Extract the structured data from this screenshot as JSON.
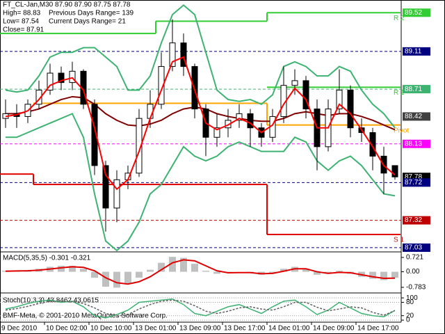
{
  "chart_data": [
    {
      "type": "candlestick",
      "title": "FT_CL-Jan,M30  87.90 87.90 87.75 87.78",
      "info": [
        "High= 88.83",
        "Low= 87.54",
        "Close= 87.91"
      ],
      "info_right": [
        "Previous Days Range= 139",
        "Current Days Range= 21"
      ],
      "categories": [
        "9 Dec 2010",
        null,
        null,
        null,
        "10 Dec 02:00",
        null,
        null,
        null,
        "10 Dec 10:00",
        null,
        null,
        null,
        "13 Dec 01:00",
        null,
        null,
        null,
        "13 Dec 09:00",
        null,
        null,
        null,
        "13 Dec 17:00",
        null,
        null,
        null,
        "14 Dec 01:00",
        null,
        null,
        null,
        "14 Dec 09:00",
        null,
        null,
        null,
        "14 Dec 17:00",
        null,
        null,
        null
      ],
      "open": [
        88.4,
        88.45,
        88.42,
        88.55,
        88.7,
        88.88,
        88.78,
        88.9,
        88.55,
        87.9,
        87.45,
        87.75,
        87.82,
        88.4,
        88.55,
        88.95,
        89.2,
        88.95,
        88.5,
        88.2,
        88.3,
        88.38,
        88.45,
        88.3,
        88.2,
        88.42,
        88.75,
        88.8,
        88.5,
        88.1,
        88.5,
        88.7,
        88.3,
        88.25,
        88.0,
        87.9
      ],
      "high": [
        88.6,
        88.55,
        88.6,
        88.8,
        88.98,
        88.95,
        89.0,
        88.92,
        88.6,
        87.95,
        87.85,
        87.9,
        88.5,
        88.7,
        89.1,
        89.45,
        89.3,
        88.98,
        88.55,
        88.45,
        88.5,
        88.55,
        88.5,
        88.35,
        88.5,
        88.95,
        88.92,
        88.85,
        88.6,
        88.6,
        88.92,
        88.75,
        88.4,
        88.3,
        88.1,
        87.9
      ],
      "low": [
        88.3,
        88.3,
        88.35,
        88.5,
        88.65,
        88.7,
        88.7,
        88.5,
        87.8,
        87.2,
        87.3,
        87.65,
        87.78,
        88.3,
        88.5,
        88.9,
        88.85,
        88.4,
        88.0,
        88.1,
        88.2,
        88.3,
        88.1,
        88.1,
        88.15,
        88.35,
        88.65,
        88.4,
        87.85,
        88.05,
        88.45,
        88.2,
        88.15,
        87.85,
        87.6,
        87.75
      ],
      "close": [
        88.45,
        88.42,
        88.55,
        88.7,
        88.88,
        88.78,
        88.9,
        88.55,
        87.9,
        87.45,
        87.75,
        87.82,
        88.4,
        88.55,
        88.95,
        89.2,
        88.95,
        88.5,
        88.2,
        88.3,
        88.38,
        88.45,
        88.3,
        88.2,
        88.42,
        88.75,
        88.8,
        88.5,
        88.1,
        88.5,
        88.7,
        88.3,
        88.25,
        88.0,
        87.82,
        87.78
      ],
      "series": [
        {
          "color": "#3cb371",
          "values": [
            88.7,
            88.68,
            88.7,
            88.85,
            89.05,
            89.1,
            89.1,
            89.15,
            89.15,
            89.05,
            88.95,
            88.7,
            88.7,
            88.85,
            89.2,
            89.5,
            89.6,
            89.5,
            89.1,
            88.7,
            88.6,
            88.58,
            88.6,
            88.55,
            88.65,
            88.95,
            89.0,
            88.95,
            88.85,
            88.85,
            88.95,
            88.9,
            88.7,
            88.55,
            88.45,
            88.3
          ]
        },
        {
          "color": "#3cb371",
          "values": [
            88.2,
            88.2,
            88.25,
            88.3,
            88.35,
            88.4,
            88.45,
            88.2,
            87.6,
            87.1,
            87.0,
            87.1,
            87.3,
            87.6,
            87.7,
            87.9,
            88.1,
            88.0,
            87.95,
            88.0,
            88.1,
            88.15,
            88.1,
            88.05,
            88.05,
            88.05,
            88.2,
            88.15,
            87.95,
            87.85,
            87.95,
            88.0,
            87.9,
            87.75,
            87.6,
            87.58
          ]
        },
        {
          "color": "#800000",
          "values": [
            88.45,
            88.45,
            88.47,
            88.5,
            88.55,
            88.6,
            88.63,
            88.62,
            88.55,
            88.45,
            88.38,
            88.33,
            88.32,
            88.34,
            88.38,
            88.45,
            88.5,
            88.52,
            88.5,
            88.45,
            88.42,
            88.4,
            88.38,
            88.37,
            88.37,
            88.4,
            88.45,
            88.47,
            88.45,
            88.43,
            88.45,
            88.45,
            88.42,
            88.38,
            88.33,
            88.28
          ]
        },
        {
          "color": "#ff0000",
          "values": [
            88.42,
            88.44,
            88.48,
            88.6,
            88.75,
            88.8,
            88.83,
            88.7,
            88.3,
            87.8,
            87.65,
            87.75,
            88.05,
            88.4,
            88.7,
            89.0,
            89.05,
            88.7,
            88.35,
            88.28,
            88.33,
            88.4,
            88.35,
            88.25,
            88.33,
            88.55,
            88.72,
            88.6,
            88.3,
            88.3,
            88.55,
            88.45,
            88.28,
            88.1,
            87.9,
            87.8
          ]
        }
      ],
      "pivots": [
        {
          "name": "R 2",
          "color": "#32cd32",
          "values": [
            89.3,
            89.3,
            89.3,
            89.3,
            89.3,
            89.3,
            89.3,
            89.3,
            89.3,
            89.3,
            89.3,
            89.3,
            89.3,
            89.3,
            89.43,
            89.43,
            89.43,
            89.43,
            89.43,
            89.43,
            89.43,
            89.43,
            89.43,
            89.43,
            89.52,
            89.52,
            89.52,
            89.52,
            89.52,
            89.52,
            89.52,
            89.52,
            89.52,
            89.52,
            89.52,
            89.52
          ]
        },
        {
          "name": "R 1",
          "color": "#32cd32",
          "values": [
            null,
            null,
            null,
            null,
            null,
            null,
            null,
            null,
            null,
            null,
            null,
            null,
            null,
            null,
            null,
            null,
            null,
            null,
            null,
            null,
            null,
            null,
            null,
            null,
            88.73,
            88.73,
            88.73,
            88.73,
            88.73,
            88.73,
            88.73,
            88.73,
            88.73,
            88.73,
            88.73,
            88.73
          ]
        },
        {
          "name": "Pivot",
          "color": "#ffa500",
          "values": [
            null,
            null,
            null,
            88.56,
            88.56,
            88.56,
            88.56,
            88.56,
            88.56,
            88.56,
            88.56,
            88.56,
            88.56,
            88.56,
            88.56,
            88.56,
            88.56,
            88.56,
            88.56,
            88.56,
            88.56,
            88.56,
            88.56,
            88.56,
            88.33,
            88.33,
            88.33,
            88.33,
            88.33,
            88.33,
            88.33,
            88.33,
            88.33,
            88.33,
            88.33,
            88.33
          ]
        },
        {
          "name": "S 1",
          "color": "#e00000",
          "values": [
            87.81,
            87.81,
            87.81,
            87.7,
            87.7,
            87.7,
            87.7,
            87.7,
            87.7,
            87.7,
            87.7,
            87.7,
            87.7,
            87.7,
            87.7,
            87.7,
            87.7,
            87.7,
            87.7,
            87.7,
            87.7,
            87.7,
            87.7,
            87.7,
            87.17,
            87.17,
            87.17,
            87.17,
            87.17,
            87.17,
            87.17,
            87.17,
            87.17,
            87.17,
            87.17,
            87.17
          ]
        }
      ],
      "levels": [
        {
          "value": 89.52,
          "color": "#32cd32",
          "dashed": false
        },
        {
          "value": 89.11,
          "color": "#000080",
          "dashed": true
        },
        {
          "value": 88.71,
          "color": "#3cb371",
          "dashed": true
        },
        {
          "value": 88.42,
          "color": "#404040",
          "dashed": false
        },
        {
          "value": 88.13,
          "color": "#ff00ff",
          "dashed": true
        },
        {
          "value": 87.78,
          "color": "#000000",
          "dashed": false
        },
        {
          "value": 87.72,
          "color": "#000080",
          "dashed": true
        },
        {
          "value": 87.32,
          "color": "#c00000",
          "dashed": true
        },
        {
          "value": 87.03,
          "color": "#000080",
          "dashed": true
        }
      ],
      "ylim": [
        87.0,
        89.64
      ]
    },
    {
      "type": "bar",
      "title": "MACD(5,35,5) -0.301 -0.321",
      "series": [
        {
          "color": "#c0c0c0",
          "values": [
            0.05,
            0.05,
            0.08,
            0.15,
            0.25,
            0.3,
            0.3,
            0.15,
            -0.3,
            -0.75,
            -0.8,
            -0.6,
            -0.3,
            0.1,
            0.45,
            0.75,
            0.7,
            0.4,
            0.05,
            -0.1,
            -0.05,
            0.0,
            -0.05,
            -0.15,
            -0.05,
            0.15,
            0.25,
            0.15,
            -0.15,
            -0.1,
            0.05,
            -0.1,
            -0.25,
            -0.35,
            -0.42,
            -0.301
          ]
        },
        {
          "color": "#e00000",
          "values": [
            0.03,
            0.04,
            0.05,
            0.08,
            0.14,
            0.2,
            0.25,
            0.22,
            0.05,
            -0.3,
            -0.55,
            -0.62,
            -0.5,
            -0.25,
            0.1,
            0.45,
            0.6,
            0.55,
            0.3,
            0.05,
            -0.05,
            -0.04,
            -0.04,
            -0.1,
            -0.08,
            0.03,
            0.15,
            0.15,
            0.0,
            -0.08,
            -0.03,
            -0.05,
            -0.15,
            -0.25,
            -0.33,
            -0.321
          ]
        }
      ],
      "ylim": [
        -1.03,
        0.93
      ],
      "yticks": [
        0.721,
        {
          "value": 0,
          "label": "0.00"
        },
        -0.783
      ]
    },
    {
      "type": "line",
      "title": "Stoch(10,3,3) 43.8462 43.0615",
      "series": [
        {
          "color": "#3cb371",
          "values": [
            50,
            60,
            75,
            85,
            90,
            80,
            85,
            60,
            20,
            10,
            25,
            45,
            80,
            85,
            90,
            95,
            70,
            30,
            20,
            40,
            60,
            70,
            50,
            30,
            60,
            85,
            90,
            60,
            25,
            45,
            80,
            55,
            30,
            20,
            15,
            43.8462
          ]
        },
        {
          "color": "#606060",
          "dashed": true,
          "values": [
            45,
            52,
            62,
            75,
            85,
            85,
            83,
            75,
            55,
            30,
            18,
            25,
            50,
            70,
            85,
            90,
            85,
            65,
            40,
            30,
            40,
            55,
            60,
            50,
            45,
            60,
            80,
            80,
            58,
            42,
            50,
            60,
            55,
            35,
            22,
            43.0615
          ]
        }
      ],
      "ylim": [
        -6,
        116
      ],
      "yticks": [
        100,
        80,
        20,
        0
      ]
    }
  ],
  "footer": "BMF-Meta, © 2001-2010 MetaQuotes Software Corp."
}
